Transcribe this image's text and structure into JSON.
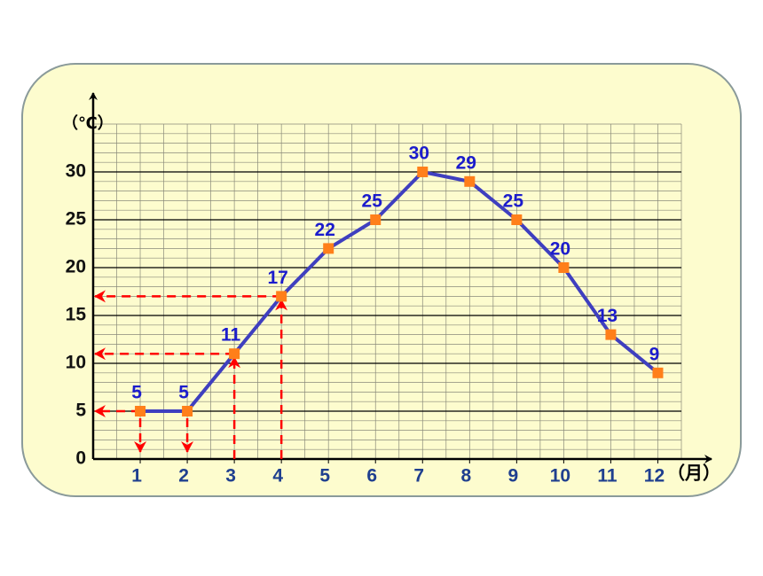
{
  "chart_data": {
    "type": "line",
    "y_label": "（℃）",
    "x_label": "（月）",
    "x": [
      1,
      2,
      3,
      4,
      5,
      6,
      7,
      8,
      9,
      10,
      11,
      12
    ],
    "xlim": [
      0,
      12.5
    ],
    "xticks": [
      1,
      2,
      3,
      4,
      5,
      6,
      7,
      8,
      9,
      10,
      11,
      12
    ],
    "ylim": [
      0,
      35
    ],
    "yticks": [
      0,
      5,
      10,
      15,
      20,
      25,
      30
    ],
    "grid": true,
    "series": [
      {
        "color": "#3f3fbf",
        "marker_color": "#ff7f1a",
        "label_color": "#1c1ccc",
        "values": [
          5,
          5,
          11,
          17,
          22,
          25,
          30,
          29,
          25,
          20,
          13,
          9
        ]
      }
    ]
  }
}
